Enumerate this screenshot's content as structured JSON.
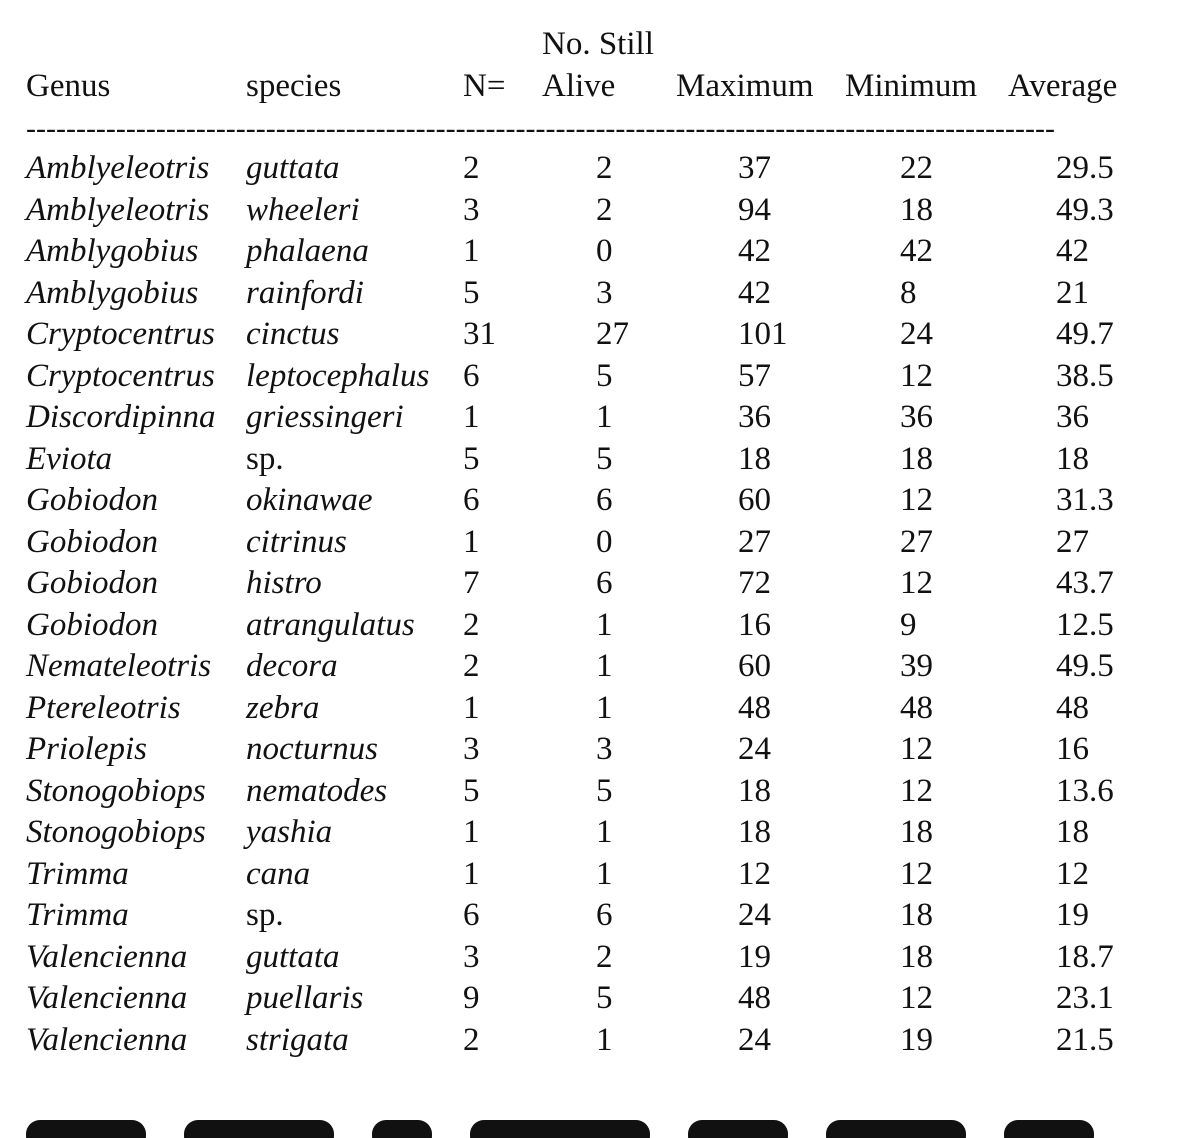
{
  "table": {
    "headers": {
      "genus": "Genus",
      "species": "species",
      "n": "N=",
      "alive_line1": "No. Still",
      "alive_line2": "Alive",
      "maximum": "Maximum",
      "minimum": "Minimum",
      "average": "Average"
    },
    "rule": "-------------------------------------------------------------------------------------------------------",
    "rows": [
      {
        "genus": "Amblyeleotris",
        "species": "guttata",
        "n": "2",
        "alive": "2",
        "max": "37",
        "min": "22",
        "avg": "29.5"
      },
      {
        "genus": "Amblyeleotris",
        "species": "wheeleri",
        "n": "3",
        "alive": "2",
        "max": "94",
        "min": "18",
        "avg": "49.3"
      },
      {
        "genus": "Amblygobius",
        "species": "phalaena",
        "n": "1",
        "alive": "0",
        "max": "42",
        "min": "42",
        "avg": "42"
      },
      {
        "genus": "Amblygobius",
        "species": "rainfordi",
        "n": "5",
        "alive": "3",
        "max": "42",
        "min": "8",
        "avg": "21"
      },
      {
        "genus": "Cryptocentrus",
        "species": "cinctus",
        "n": "31",
        "alive": "27",
        "max": "101",
        "min": "24",
        "avg": "49.7"
      },
      {
        "genus": "Cryptocentrus",
        "species": "leptocephalus",
        "n": "6",
        "alive": "5",
        "max": "57",
        "min": "12",
        "avg": "38.5"
      },
      {
        "genus": "Discordipinna",
        "species": "griessingeri",
        "n": "1",
        "alive": "1",
        "max": "36",
        "min": "36",
        "avg": "36"
      },
      {
        "genus": "Eviota",
        "species": "sp.",
        "n": "5",
        "alive": "5",
        "max": "18",
        "min": "18",
        "avg": "18"
      },
      {
        "genus": "Gobiodon",
        "species": "okinawae",
        "n": "6",
        "alive": "6",
        "max": "60",
        "min": "12",
        "avg": "31.3"
      },
      {
        "genus": "Gobiodon",
        "species": "citrinus",
        "n": "1",
        "alive": "0",
        "max": "27",
        "min": "27",
        "avg": "27"
      },
      {
        "genus": "Gobiodon",
        "species": "histro",
        "n": "7",
        "alive": "6",
        "max": "72",
        "min": "12",
        "avg": "43.7"
      },
      {
        "genus": "Gobiodon",
        "species": "atrangulatus",
        "n": "2",
        "alive": "1",
        "max": "16",
        "min": "9",
        "avg": "12.5"
      },
      {
        "genus": "Nemateleotris",
        "species": "decora",
        "n": "2",
        "alive": "1",
        "max": "60",
        "min": "39",
        "avg": "49.5"
      },
      {
        "genus": "Ptereleotris",
        "species": "zebra",
        "n": "1",
        "alive": "1",
        "max": "48",
        "min": "48",
        "avg": "48"
      },
      {
        "genus": "Priolepis",
        "species": "nocturnus",
        "n": "3",
        "alive": "3",
        "max": "24",
        "min": "12",
        "avg": "16"
      },
      {
        "genus": "Stonogobiops",
        "species": "nematodes",
        "n": "5",
        "alive": "5",
        "max": "18",
        "min": "12",
        "avg": "13.6"
      },
      {
        "genus": "Stonogobiops",
        "species": "yashia",
        "n": "1",
        "alive": "1",
        "max": "18",
        "min": "18",
        "avg": "18"
      },
      {
        "genus": "Trimma",
        "species": "cana",
        "n": "1",
        "alive": "1",
        "max": "12",
        "min": "12",
        "avg": "12"
      },
      {
        "genus": "Trimma",
        "species": "sp.",
        "n": "6",
        "alive": "6",
        "max": "24",
        "min": "18",
        "avg": "19"
      },
      {
        "genus": "Valencienna",
        "species": "guttata",
        "n": "3",
        "alive": "2",
        "max": "19",
        "min": "18",
        "avg": "18.7"
      },
      {
        "genus": "Valencienna",
        "species": "puellaris",
        "n": "9",
        "alive": "5",
        "max": "48",
        "min": "12",
        "avg": "23.1"
      },
      {
        "genus": "Valencienna",
        "species": "strigata",
        "n": "2",
        "alive": "1",
        "max": "24",
        "min": "19",
        "avg": "21.5"
      }
    ]
  }
}
